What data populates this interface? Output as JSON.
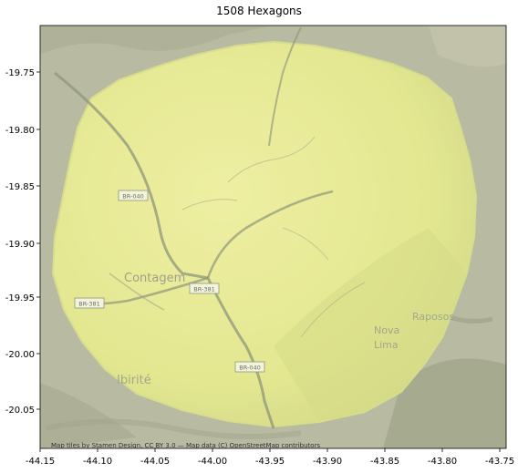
{
  "title": "1508 Hexagons",
  "attribution": "Map tiles by Stamen Design, CC BY 3.0 — Map data (C) OpenStreetMap contributors",
  "x_ticks": [
    "-44.15",
    "-44.10",
    "-44.05",
    "-44.00",
    "-43.95",
    "-43.90",
    "-43.85",
    "-43.80",
    "-43.75"
  ],
  "y_ticks": [
    "-19.75",
    "-19.80",
    "-19.85",
    "-19.90",
    "-19.95",
    "-20.00",
    "-20.05"
  ],
  "place_labels": [
    {
      "text": "Contagem",
      "kind": "city"
    },
    {
      "text": "Nova",
      "kind": "city"
    },
    {
      "text": "Lima",
      "kind": "city"
    },
    {
      "text": "Raposos",
      "kind": "city"
    },
    {
      "text": "Ibirité",
      "kind": "city"
    }
  ],
  "road_labels": [
    "BR-040",
    "BR-381",
    "BR-381",
    "BR-040"
  ],
  "colors": {
    "terrain": "#b7b9a1",
    "hex_fill": "#eef08c",
    "hex_fill_dark": "#d6de84",
    "road": "#9aa089"
  }
}
